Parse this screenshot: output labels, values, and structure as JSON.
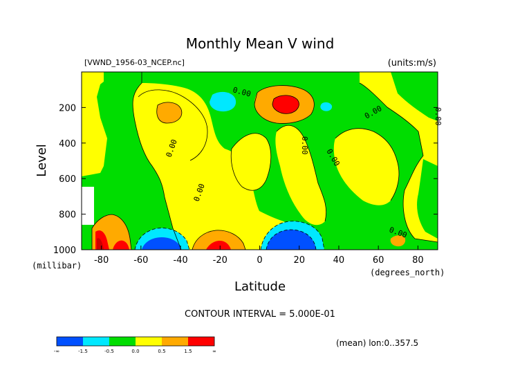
{
  "chart_data": {
    "type": "heatmap",
    "title": "Monthly Mean V wind",
    "file_label": "[VWND_1956-03_NCEP.nc]",
    "units_label": "(units:m/s)",
    "xlabel": "Latitude",
    "ylabel": "Level",
    "y_unit_label": "(millibar)",
    "x_unit_label": "(degrees_north)",
    "contour_interval_label": "CONTOUR INTERVAL = 5.000E-01",
    "mean_label": "(mean) lon:0..357.5",
    "xlim": [
      -90,
      90
    ],
    "ylim": [
      1000,
      0
    ],
    "x_ticks": [
      -80,
      -60,
      -40,
      -20,
      0,
      20,
      40,
      60,
      80
    ],
    "x_tick_labels": [
      "-80",
      "-60",
      "-40",
      "-20",
      "0",
      "20",
      "40",
      "60",
      "80"
    ],
    "y_ticks": [
      200,
      400,
      600,
      800,
      1000
    ],
    "y_tick_labels": [
      "200",
      "400",
      "600",
      "800",
      "1000"
    ],
    "contour_labels": [
      "0.00",
      "0.00",
      "0.00",
      "0.00",
      "0.00",
      "0.00",
      "0.00",
      "0.00"
    ],
    "legend": {
      "colors": [
        "#0050ff",
        "#00e8ff",
        "#00dd00",
        "#ffff00",
        "#ffaa00",
        "#ff0000"
      ],
      "tick_labels": [
        "-∞",
        "-1.5",
        "-0.5",
        "0.0",
        "0.5",
        "1.5",
        "∞"
      ]
    },
    "colors": {
      "strong_neg": "#0050ff",
      "neg": "#00e8ff",
      "near_zero": "#00dd00",
      "pos": "#ffff00",
      "mid_pos": "#ffaa00",
      "strong_pos": "#ff0000",
      "deep_red": "#cc0000"
    }
  }
}
